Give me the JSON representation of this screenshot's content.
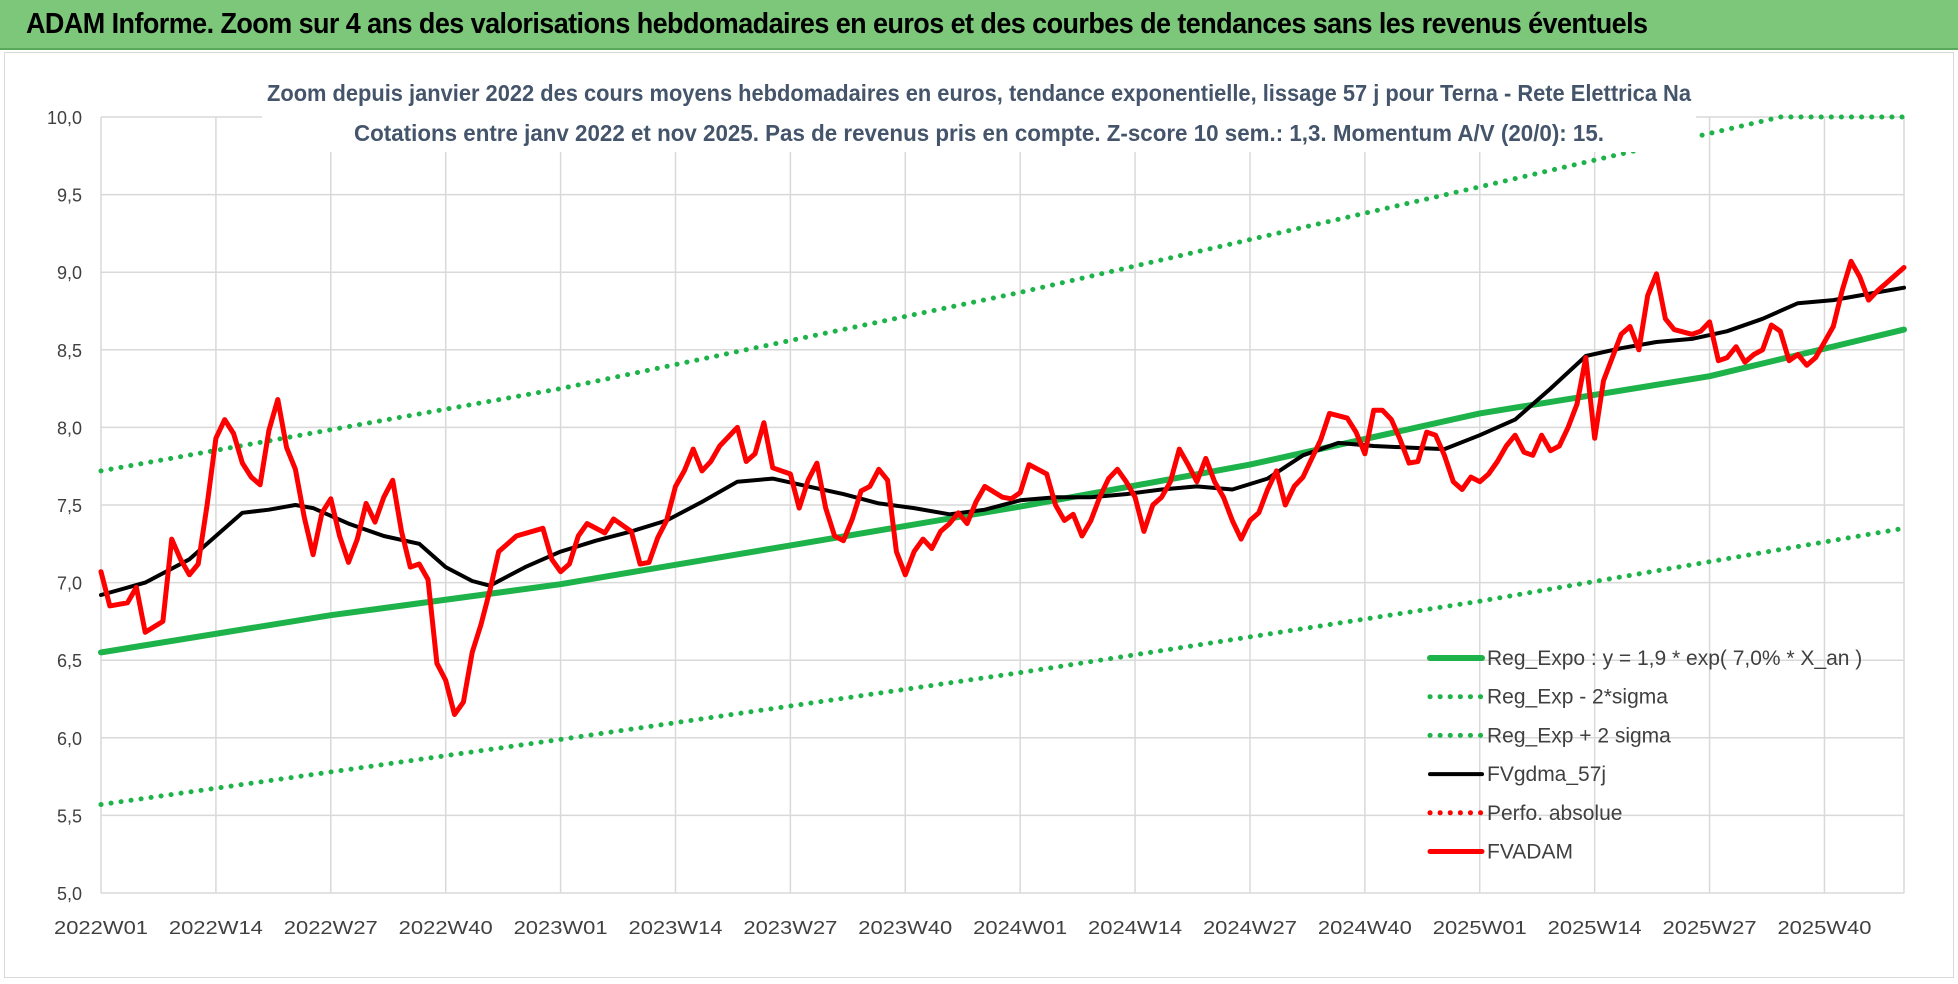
{
  "banner": {
    "title": "ADAM Informe. Zoom sur 4 ans des valorisations hebdomadaires en euros et des courbes de tendances sans les revenus éventuels"
  },
  "chart_data": {
    "type": "line",
    "title": "Zoom depuis janvier 2022 des cours moyens hebdomadaires en euros, tendance exponentielle, lissage 57 j pour Terna - Rete Elettrica Na",
    "subtitle": "Cotations entre janv 2022 et nov 2025. Pas de revenus pris en compte. Z-score 10 sem.: 1,3. Momentum A/V (20/0): 15.",
    "xlabel": "",
    "ylabel": "",
    "ylim": [
      5.0,
      10.0
    ],
    "y_ticks": [
      "5,0",
      "5,5",
      "6,0",
      "6,5",
      "7,0",
      "7,5",
      "8,0",
      "8,5",
      "9,0",
      "9,5",
      "10,0"
    ],
    "x_ticks": [
      "2022W01",
      "2022W14",
      "2022W27",
      "2022W40",
      "2023W01",
      "2023W14",
      "2023W27",
      "2023W40",
      "2024W01",
      "2024W14",
      "2024W27",
      "2024W40",
      "2025W01",
      "2025W14",
      "2025W27",
      "2025W40"
    ],
    "x_range_weeks": [
      0,
      204
    ],
    "grid": true,
    "legend_position": "bottom-right",
    "series": [
      {
        "name": "Reg_Expo : y = 1,9 * exp( 7,0% *  X_an )",
        "style": "solid",
        "color": "#1db34a",
        "points": [
          [
            0,
            6.55
          ],
          [
            26,
            6.79
          ],
          [
            52,
            6.99
          ],
          [
            78,
            7.24
          ],
          [
            104,
            7.49
          ],
          [
            130,
            7.76
          ],
          [
            156,
            8.09
          ],
          [
            182,
            8.33
          ],
          [
            204,
            8.63
          ]
        ]
      },
      {
        "name": "Reg_Exp - 2*sigma",
        "style": "dotted",
        "color": "#1db34a",
        "points": [
          [
            0,
            5.57
          ],
          [
            52,
            5.99
          ],
          [
            104,
            6.42
          ],
          [
            156,
            6.88
          ],
          [
            204,
            7.35
          ]
        ]
      },
      {
        "name": "Reg_Exp + 2 sigma",
        "style": "dotted",
        "color": "#1db34a",
        "points": [
          [
            0,
            7.72
          ],
          [
            52,
            8.25
          ],
          [
            104,
            8.87
          ],
          [
            156,
            9.55
          ],
          [
            190,
            10.0
          ],
          [
            204,
            10.0
          ]
        ]
      },
      {
        "name": "FVgdma_57j",
        "style": "solid",
        "color": "#000000",
        "points": [
          [
            0,
            6.92
          ],
          [
            5,
            7.0
          ],
          [
            10,
            7.15
          ],
          [
            14,
            7.35
          ],
          [
            16,
            7.45
          ],
          [
            19,
            7.47
          ],
          [
            22,
            7.5
          ],
          [
            24,
            7.48
          ],
          [
            28,
            7.38
          ],
          [
            32,
            7.3
          ],
          [
            36,
            7.25
          ],
          [
            39,
            7.1
          ],
          [
            42,
            7.01
          ],
          [
            44,
            6.98
          ],
          [
            48,
            7.1
          ],
          [
            52,
            7.2
          ],
          [
            56,
            7.27
          ],
          [
            60,
            7.33
          ],
          [
            64,
            7.4
          ],
          [
            68,
            7.52
          ],
          [
            72,
            7.65
          ],
          [
            76,
            7.67
          ],
          [
            80,
            7.62
          ],
          [
            84,
            7.57
          ],
          [
            88,
            7.51
          ],
          [
            92,
            7.48
          ],
          [
            96,
            7.44
          ],
          [
            100,
            7.47
          ],
          [
            104,
            7.53
          ],
          [
            108,
            7.55
          ],
          [
            112,
            7.55
          ],
          [
            116,
            7.57
          ],
          [
            120,
            7.6
          ],
          [
            124,
            7.62
          ],
          [
            128,
            7.6
          ],
          [
            132,
            7.67
          ],
          [
            136,
            7.82
          ],
          [
            140,
            7.9
          ],
          [
            144,
            7.88
          ],
          [
            148,
            7.87
          ],
          [
            152,
            7.86
          ],
          [
            156,
            7.95
          ],
          [
            160,
            8.05
          ],
          [
            164,
            8.25
          ],
          [
            168,
            8.46
          ],
          [
            172,
            8.51
          ],
          [
            176,
            8.55
          ],
          [
            180,
            8.57
          ],
          [
            184,
            8.62
          ],
          [
            188,
            8.7
          ],
          [
            192,
            8.8
          ],
          [
            196,
            8.82
          ],
          [
            200,
            8.86
          ],
          [
            204,
            8.9
          ]
        ]
      },
      {
        "name": "Perfo. absolue",
        "style": "dotted",
        "color": "#ff0000",
        "points": []
      },
      {
        "name": "FVADAM",
        "style": "solid",
        "color": "#ff0000",
        "points": [
          [
            0,
            7.07
          ],
          [
            1,
            6.85
          ],
          [
            3,
            6.87
          ],
          [
            4,
            6.97
          ],
          [
            5,
            6.68
          ],
          [
            7,
            6.75
          ],
          [
            8,
            7.28
          ],
          [
            9,
            7.15
          ],
          [
            10,
            7.05
          ],
          [
            11,
            7.12
          ],
          [
            12,
            7.5
          ],
          [
            13,
            7.93
          ],
          [
            14,
            8.05
          ],
          [
            15,
            7.96
          ],
          [
            16,
            7.77
          ],
          [
            17,
            7.68
          ],
          [
            18,
            7.63
          ],
          [
            19,
            7.98
          ],
          [
            20,
            8.18
          ],
          [
            21,
            7.87
          ],
          [
            22,
            7.73
          ],
          [
            23,
            7.42
          ],
          [
            24,
            7.18
          ],
          [
            25,
            7.45
          ],
          [
            26,
            7.54
          ],
          [
            27,
            7.3
          ],
          [
            28,
            7.13
          ],
          [
            29,
            7.28
          ],
          [
            30,
            7.51
          ],
          [
            31,
            7.39
          ],
          [
            32,
            7.55
          ],
          [
            33,
            7.66
          ],
          [
            34,
            7.33
          ],
          [
            35,
            7.1
          ],
          [
            36,
            7.12
          ],
          [
            37,
            7.02
          ],
          [
            38,
            6.48
          ],
          [
            39,
            6.37
          ],
          [
            40,
            6.15
          ],
          [
            41,
            6.23
          ],
          [
            42,
            6.55
          ],
          [
            43,
            6.73
          ],
          [
            44,
            6.95
          ],
          [
            45,
            7.2
          ],
          [
            47,
            7.3
          ],
          [
            50,
            7.35
          ],
          [
            51,
            7.15
          ],
          [
            52,
            7.07
          ],
          [
            53,
            7.12
          ],
          [
            54,
            7.3
          ],
          [
            55,
            7.38
          ],
          [
            57,
            7.32
          ],
          [
            58,
            7.41
          ],
          [
            60,
            7.33
          ],
          [
            61,
            7.12
          ],
          [
            62,
            7.13
          ],
          [
            63,
            7.29
          ],
          [
            64,
            7.4
          ],
          [
            65,
            7.62
          ],
          [
            66,
            7.72
          ],
          [
            67,
            7.86
          ],
          [
            68,
            7.72
          ],
          [
            69,
            7.78
          ],
          [
            70,
            7.88
          ],
          [
            72,
            8.0
          ],
          [
            73,
            7.78
          ],
          [
            74,
            7.83
          ],
          [
            75,
            8.03
          ],
          [
            76,
            7.74
          ],
          [
            78,
            7.7
          ],
          [
            79,
            7.48
          ],
          [
            80,
            7.66
          ],
          [
            81,
            7.77
          ],
          [
            82,
            7.48
          ],
          [
            83,
            7.3
          ],
          [
            84,
            7.27
          ],
          [
            85,
            7.41
          ],
          [
            86,
            7.59
          ],
          [
            87,
            7.62
          ],
          [
            88,
            7.73
          ],
          [
            89,
            7.66
          ],
          [
            90,
            7.2
          ],
          [
            91,
            7.05
          ],
          [
            92,
            7.2
          ],
          [
            93,
            7.28
          ],
          [
            94,
            7.22
          ],
          [
            95,
            7.33
          ],
          [
            96,
            7.38
          ],
          [
            97,
            7.45
          ],
          [
            98,
            7.38
          ],
          [
            99,
            7.52
          ],
          [
            100,
            7.62
          ],
          [
            102,
            7.55
          ],
          [
            103,
            7.54
          ],
          [
            104,
            7.58
          ],
          [
            105,
            7.76
          ],
          [
            106,
            7.73
          ],
          [
            107,
            7.7
          ],
          [
            108,
            7.5
          ],
          [
            109,
            7.4
          ],
          [
            110,
            7.44
          ],
          [
            111,
            7.3
          ],
          [
            112,
            7.4
          ],
          [
            113,
            7.55
          ],
          [
            114,
            7.67
          ],
          [
            115,
            7.73
          ],
          [
            116,
            7.65
          ],
          [
            117,
            7.55
          ],
          [
            118,
            7.33
          ],
          [
            119,
            7.5
          ],
          [
            120,
            7.55
          ],
          [
            121,
            7.65
          ],
          [
            122,
            7.86
          ],
          [
            123,
            7.76
          ],
          [
            124,
            7.65
          ],
          [
            125,
            7.8
          ],
          [
            126,
            7.65
          ],
          [
            127,
            7.55
          ],
          [
            128,
            7.4
          ],
          [
            129,
            7.28
          ],
          [
            130,
            7.4
          ],
          [
            131,
            7.45
          ],
          [
            132,
            7.6
          ],
          [
            133,
            7.72
          ],
          [
            134,
            7.5
          ],
          [
            135,
            7.62
          ],
          [
            136,
            7.68
          ],
          [
            137,
            7.8
          ],
          [
            138,
            7.92
          ],
          [
            139,
            8.09
          ],
          [
            141,
            8.06
          ],
          [
            142,
            7.97
          ],
          [
            143,
            7.83
          ],
          [
            144,
            8.11
          ],
          [
            145,
            8.11
          ],
          [
            146,
            8.05
          ],
          [
            147,
            7.92
          ],
          [
            148,
            7.77
          ],
          [
            149,
            7.78
          ],
          [
            150,
            7.97
          ],
          [
            151,
            7.95
          ],
          [
            152,
            7.82
          ],
          [
            153,
            7.65
          ],
          [
            154,
            7.6
          ],
          [
            155,
            7.68
          ],
          [
            156,
            7.65
          ],
          [
            157,
            7.7
          ],
          [
            158,
            7.78
          ],
          [
            159,
            7.88
          ],
          [
            160,
            7.95
          ],
          [
            161,
            7.84
          ],
          [
            162,
            7.82
          ],
          [
            163,
            7.95
          ],
          [
            164,
            7.85
          ],
          [
            165,
            7.88
          ],
          [
            166,
            8.0
          ],
          [
            167,
            8.15
          ],
          [
            168,
            8.45
          ],
          [
            169,
            7.93
          ],
          [
            170,
            8.3
          ],
          [
            171,
            8.45
          ],
          [
            172,
            8.6
          ],
          [
            173,
            8.65
          ],
          [
            174,
            8.5
          ],
          [
            175,
            8.85
          ],
          [
            176,
            8.99
          ],
          [
            177,
            8.7
          ],
          [
            178,
            8.63
          ],
          [
            180,
            8.6
          ],
          [
            181,
            8.62
          ],
          [
            182,
            8.68
          ],
          [
            183,
            8.43
          ],
          [
            184,
            8.45
          ],
          [
            185,
            8.52
          ],
          [
            186,
            8.42
          ],
          [
            187,
            8.47
          ],
          [
            188,
            8.5
          ],
          [
            189,
            8.66
          ],
          [
            190,
            8.62
          ],
          [
            191,
            8.43
          ],
          [
            192,
            8.47
          ],
          [
            193,
            8.4
          ],
          [
            194,
            8.45
          ],
          [
            195,
            8.55
          ],
          [
            196,
            8.65
          ],
          [
            197,
            8.88
          ],
          [
            198,
            9.07
          ],
          [
            199,
            8.97
          ],
          [
            200,
            8.82
          ],
          [
            201,
            8.88
          ],
          [
            202,
            8.93
          ],
          [
            203,
            8.98
          ],
          [
            204,
            9.03
          ]
        ]
      }
    ]
  }
}
